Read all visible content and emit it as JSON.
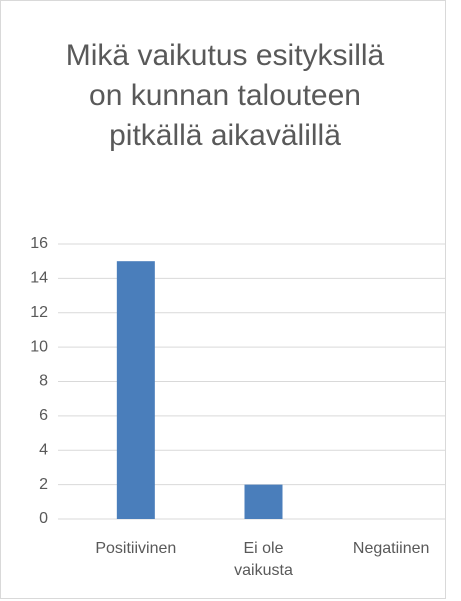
{
  "chart_data": {
    "type": "bar",
    "title": "Mikä vaikutus esityksillä on kunnan talouteen pitkällä aikavälillä",
    "categories": [
      "Positiivinen",
      "Ei ole vaikusta",
      "Negatiinen"
    ],
    "values": [
      15,
      2,
      0
    ],
    "color": "#4a7ebb",
    "ylim": [
      0,
      16
    ],
    "yticks": [
      0,
      2,
      4,
      6,
      8,
      10,
      12,
      14,
      16
    ],
    "grid": true
  }
}
